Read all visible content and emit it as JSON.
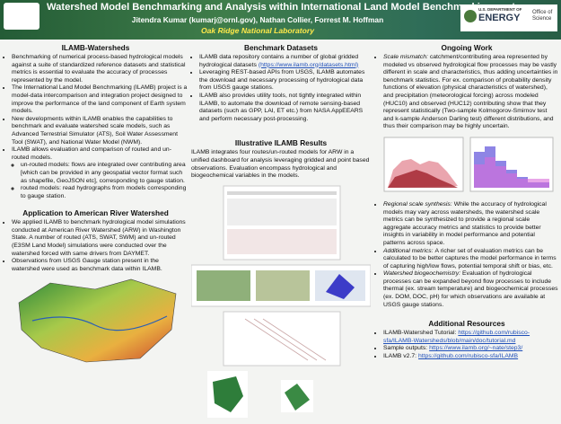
{
  "header": {
    "title": "Watershed Model Benchmarking and Analysis within International Land Model Benchmarking system",
    "authors": "Jitendra Kumar (kumarj@ornl.gov), Nathan Collier, Forrest M. Hoffman",
    "affiliation": "Oak Ridge National Laboratory",
    "logo_dept": "U.S. DEPARTMENT OF",
    "logo_energy": "ENERGY",
    "logo_office": "Office of Science"
  },
  "sections": [
    {
      "heading": "ILAMB-Watersheds",
      "bullets": [
        {
          "text": "Benchmarking of numerical process-based hydrological models against a suite of standardized reference datasets and statistical metrics is essential to evaluate the accuracy of processes represented by the model."
        },
        {
          "text": "The International Land Model Benchmarking (ILAMB) project is a model-data intercomparison and integration project designed to improve the performance of the land component of Earth system models."
        },
        {
          "text": "New developments within ILAMB enables the capabilities to benchmark and evaluate watershed scale models, such as Advanced Terrestrial Simulator (ATS), Soil Water Assessment Tool (SWAT), and National Water Model (NWM)."
        },
        {
          "text": "ILAMB allows evaluation and comparison of routed and un-routed models.",
          "sub": [
            "un-routed models: flows are integrated over contributing area [which can be provided in any geospatial vector format such as shapefile, GeoJSON etc], corresponding to gauge station.",
            "routed models: read hydrographs from models corresponding to gauge station."
          ]
        }
      ]
    },
    {
      "heading": "Application to American River Watershed",
      "bullets": [
        {
          "text": "We applied ILAMB to benchmark hydrological model simulations conducted at American River Watershed (ARW) in Washington State. A number of routed (ATS, SWAT, SWM) and un-routed (E3SM Land Model) simulations were conducted over the watershed forced with same drivers from DAYMET."
        },
        {
          "text": "Observations from USGS Gauge station present in the watershed were used as benchmark data within ILAMB."
        }
      ]
    },
    {
      "heading": "Benchmark Datasets",
      "bullets": [
        {
          "text": "ILAMB data repository contains a number of global gridded hydrological datasets",
          "link": "(https://www.ilamb.org/datasets.html)"
        },
        {
          "text": "Leveraging REST-based APIs from USGS, ILAMB automates the download and necessary processing of hydrological data from USGS gauge stations."
        },
        {
          "text": "ILAMB also provides utility tools, not tightly integrated within ILAMB, to automate the download of remote sensing-based datasets (such as GPP, LAI, ET etc.) from NASA AppEEARS and perform necessary post-processing."
        }
      ]
    },
    {
      "heading": "Illustrative ILAMB Results",
      "paragraph": "ILAMB integrates four routes/un-routed models for ARW in a unified dashboard for analysis leveraging gridded and point based observations. Evaluation encompass hydrological and biogeochemical variables in the models."
    },
    {
      "heading": "Ongoing Work",
      "bullets": [
        {
          "term": "Scale mismatch:",
          "text": "catchment/contributing area represented by modeled vs observed hydrological flow processes may be vastly different in scale and characteristics, thus adding uncertainties in benchmark statistics. For ex. comparison of probability density functions of elevation (physical characteristics of watershed), and precipitation (meteorological forcing) across modeled (HUC10) and observed (HUC12) contributing show that they represent statistically (Two-sample Kolmogorov-Smirnov test and k-sample Anderson Darling test) different distributions, and thus their comparison may be highly uncertain."
        }
      ]
    },
    {
      "bullets": [
        {
          "term": "Regional scale synthesis:",
          "text": "While the accuracy of hydrological models may vary across watersheds, the watershed scale metrics can be synthesized to provide a regional scale aggregate accuracy metrics and statistics to provide better insights in variability in model performance and potential patterns across space."
        },
        {
          "term": "Additional metrics:",
          "text": "A richer set of evaluation metrics can be calculated to be better captures the model performance in terms of capturing high/low flows, potential temporal shift or bias, etc."
        },
        {
          "term": "Watershed biogeochemistry:",
          "text": "Evaluation of hydrological processes can be expanded beyond flow processes to include thermal (ex. stream temperature) and biogeochemical processes (ex. DOM, DOC, pH) for which observations are available at USGS gauge stations."
        }
      ]
    },
    {
      "heading": "Additional Resources",
      "bullets": [
        {
          "text": "ILAMB-Watershed Tutorial:",
          "link": "https://github.com/rubisco-sfa/ILAMB-Watersheds/blob/main/doc/tutorial.md"
        },
        {
          "text": "Sample outputs:",
          "link": "https://www.ilamb.org/~nate/step3/"
        },
        {
          "text": "ILAMB v2.7:",
          "link": "https://github.com/rubisco-sfa/ILAMB"
        }
      ]
    }
  ]
}
